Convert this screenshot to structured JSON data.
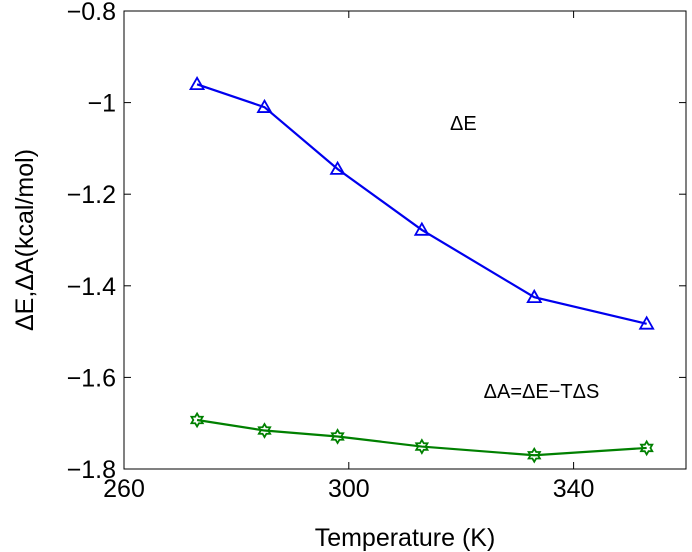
{
  "chart_data": {
    "type": "line",
    "title": "",
    "xlabel": "Temperature (K)",
    "ylabel": "ΔE,ΔA(kcal/mol)",
    "xlim": [
      260,
      360
    ],
    "ylim": [
      -1.8,
      -0.8
    ],
    "x_ticks": [
      260,
      300,
      340
    ],
    "x_tick_labels": [
      "260",
      "300",
      "340"
    ],
    "y_ticks": [
      -1.8,
      -1.6,
      -1.4,
      -1.2,
      -1.0,
      -0.8
    ],
    "y_tick_labels": [
      "−1.8",
      "−1.6",
      "−1.4",
      "−1.2",
      "−1",
      "−0.8"
    ],
    "grid": false,
    "series": [
      {
        "name": "ΔE",
        "color": "#0000ee",
        "marker": "triangle",
        "x": [
          273,
          285,
          298,
          313,
          333,
          353
        ],
        "y": [
          -0.96,
          -1.01,
          -1.145,
          -1.278,
          -1.425,
          -1.483
        ]
      },
      {
        "name": "ΔA=ΔE−TΔS",
        "color": "#008000",
        "marker": "hexagram",
        "x": [
          273,
          285,
          298,
          313,
          333,
          353
        ],
        "y": [
          -1.693,
          -1.716,
          -1.729,
          -1.751,
          -1.77,
          -1.754
        ]
      }
    ],
    "annotations": [
      {
        "text": "ΔE",
        "x": 318,
        "y": -1.06
      },
      {
        "text": "ΔA=ΔE−TΔS",
        "x": 324,
        "y": -1.645
      }
    ]
  }
}
